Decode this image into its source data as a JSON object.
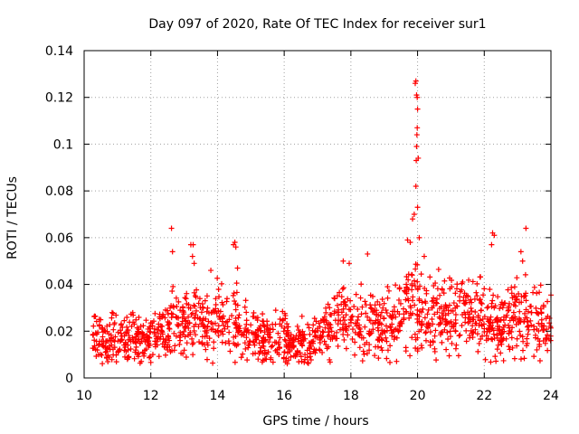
{
  "chart_data": {
    "type": "scatter",
    "title": "Day 097 of 2020, Rate Of TEC Index for receiver sur1",
    "xlabel": "GPS time / hours",
    "ylabel": "ROTI / TECUs",
    "xlim": [
      10,
      24
    ],
    "ylim": [
      0,
      0.14
    ],
    "xticks": [
      "10",
      "12",
      "14",
      "16",
      "18",
      "20",
      "22",
      "24"
    ],
    "yticks": [
      "0",
      "0.02",
      "0.04",
      "0.06",
      "0.08",
      "0.1",
      "0.12",
      "0.14"
    ],
    "grid": true,
    "marker": "+",
    "series_color": "#ff0000",
    "series": [
      {
        "name": "ROTI",
        "trend": [
          [
            10.25,
            0.018
          ],
          [
            10.5,
            0.017
          ],
          [
            11.0,
            0.016
          ],
          [
            11.5,
            0.017
          ],
          [
            12.0,
            0.018
          ],
          [
            12.3,
            0.019
          ],
          [
            12.6,
            0.022
          ],
          [
            13.0,
            0.024
          ],
          [
            13.3,
            0.025
          ],
          [
            13.6,
            0.023
          ],
          [
            14.0,
            0.024
          ],
          [
            14.3,
            0.026
          ],
          [
            14.6,
            0.022
          ],
          [
            15.0,
            0.018
          ],
          [
            15.5,
            0.017
          ],
          [
            16.0,
            0.017
          ],
          [
            16.5,
            0.015
          ],
          [
            17.0,
            0.016
          ],
          [
            17.5,
            0.022
          ],
          [
            17.8,
            0.028
          ],
          [
            18.0,
            0.027
          ],
          [
            18.5,
            0.022
          ],
          [
            19.0,
            0.022
          ],
          [
            19.5,
            0.026
          ],
          [
            19.8,
            0.03
          ],
          [
            20.0,
            0.028
          ],
          [
            20.5,
            0.026
          ],
          [
            21.0,
            0.028
          ],
          [
            21.5,
            0.027
          ],
          [
            22.0,
            0.024
          ],
          [
            22.5,
            0.022
          ],
          [
            23.0,
            0.027
          ],
          [
            23.5,
            0.024
          ],
          [
            24.0,
            0.02
          ]
        ],
        "outliers": [
          [
            12.62,
            0.064
          ],
          [
            12.65,
            0.054
          ],
          [
            13.2,
            0.057
          ],
          [
            13.27,
            0.057
          ],
          [
            13.25,
            0.052
          ],
          [
            13.3,
            0.049
          ],
          [
            13.8,
            0.046
          ],
          [
            14.48,
            0.057
          ],
          [
            14.52,
            0.058
          ],
          [
            14.55,
            0.056
          ],
          [
            14.6,
            0.047
          ],
          [
            17.77,
            0.05
          ],
          [
            17.95,
            0.049
          ],
          [
            18.5,
            0.053
          ],
          [
            19.7,
            0.059
          ],
          [
            19.78,
            0.058
          ],
          [
            19.85,
            0.068
          ],
          [
            19.9,
            0.07
          ],
          [
            19.95,
            0.082
          ],
          [
            19.96,
            0.093
          ],
          [
            19.97,
            0.099
          ],
          [
            19.98,
            0.104
          ],
          [
            19.99,
            0.107
          ],
          [
            19.93,
            0.126
          ],
          [
            19.95,
            0.127
          ],
          [
            19.97,
            0.121
          ],
          [
            19.99,
            0.12
          ],
          [
            20.0,
            0.115
          ],
          [
            20.02,
            0.094
          ],
          [
            20.0,
            0.073
          ],
          [
            20.05,
            0.06
          ],
          [
            20.2,
            0.052
          ],
          [
            22.25,
            0.062
          ],
          [
            22.3,
            0.061
          ],
          [
            22.22,
            0.057
          ],
          [
            23.25,
            0.064
          ],
          [
            23.1,
            0.054
          ],
          [
            23.15,
            0.05
          ]
        ]
      }
    ]
  }
}
